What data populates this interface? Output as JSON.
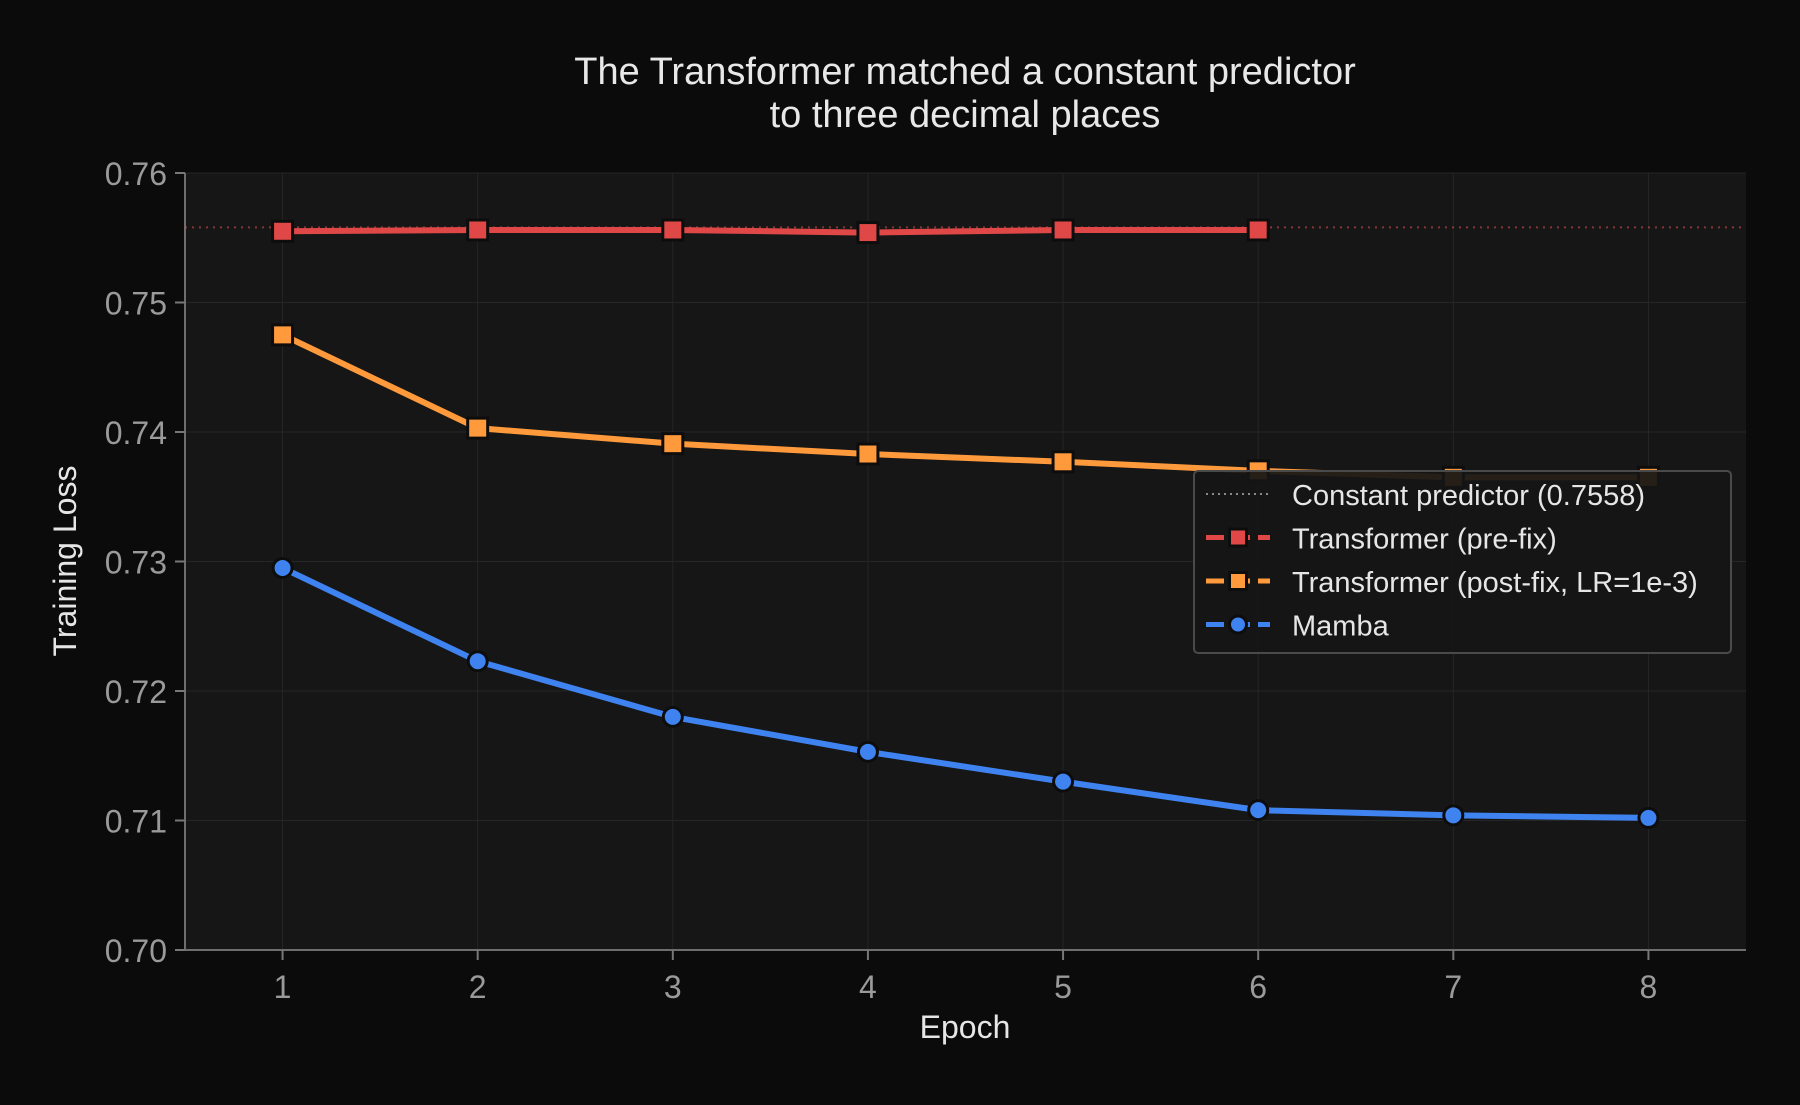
{
  "chart_data": {
    "type": "line",
    "title_lines": [
      "The Transformer matched a constant predictor",
      "to three decimal places"
    ],
    "xlabel": "Epoch",
    "ylabel": "Training Loss",
    "xlim": [
      0.5,
      8.5
    ],
    "ylim": [
      0.7,
      0.76
    ],
    "x_ticks": [
      1,
      2,
      3,
      4,
      5,
      6,
      7,
      8
    ],
    "y_ticks": [
      "0.70",
      "0.71",
      "0.72",
      "0.73",
      "0.74",
      "0.75",
      "0.76"
    ],
    "grid": true,
    "legend_position": "right",
    "reference_line": {
      "name": "Constant predictor (0.7558)",
      "y": 0.7558,
      "color": "#e05252",
      "style": "dotted"
    },
    "series": [
      {
        "name": "Transformer (pre-fix)",
        "color": "#e04848",
        "marker": "square",
        "x": [
          1,
          2,
          3,
          4,
          5,
          6
        ],
        "y": [
          0.7555,
          0.7556,
          0.7556,
          0.7554,
          0.7556,
          0.7556
        ]
      },
      {
        "name": "Transformer (post-fix, LR=1e-3)",
        "color": "#ff9a3c",
        "marker": "square",
        "x": [
          1,
          2,
          3,
          4,
          5,
          6,
          7,
          8
        ],
        "y": [
          0.7475,
          0.7403,
          0.7391,
          0.7383,
          0.7377,
          0.737,
          0.7365,
          0.7365
        ]
      },
      {
        "name": "Mamba",
        "color": "#3f83f0",
        "marker": "circle",
        "x": [
          1,
          2,
          3,
          4,
          5,
          6,
          7,
          8
        ],
        "y": [
          0.7295,
          0.7223,
          0.718,
          0.7153,
          0.713,
          0.7108,
          0.7104,
          0.7102
        ]
      }
    ]
  }
}
